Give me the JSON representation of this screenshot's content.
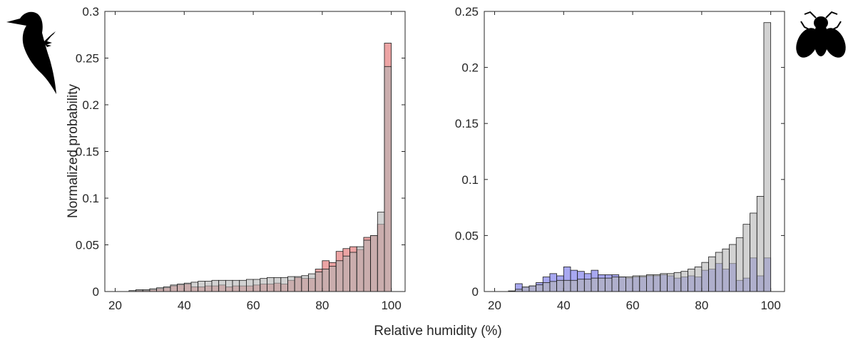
{
  "figure": {
    "xlabel": "Relative humidity (%)",
    "ylabel": "Normalized probability"
  },
  "icons": [
    {
      "name": "woodpecker-icon",
      "fill": "#000000"
    },
    {
      "name": "fly-icon",
      "fill": "#000000"
    }
  ],
  "chart_data": [
    {
      "type": "bar",
      "subtype": "overlaid-histogram",
      "panel": "left",
      "icon": "woodpecker-icon",
      "xlim": [
        17,
        104
      ],
      "ylim": [
        0,
        0.3
      ],
      "xticks": [
        20,
        40,
        60,
        80,
        100
      ],
      "yticks": [
        0,
        0.05,
        0.1,
        0.15,
        0.2,
        0.25,
        0.3
      ],
      "ytick_labels": [
        "0",
        "0.05",
        "0.1",
        "0.15",
        "0.2",
        "0.25",
        "0.3"
      ],
      "bin_width": 2,
      "bin_starts": [
        24,
        26,
        28,
        30,
        32,
        34,
        36,
        38,
        40,
        42,
        44,
        46,
        48,
        50,
        52,
        54,
        56,
        58,
        60,
        62,
        64,
        66,
        68,
        70,
        72,
        74,
        76,
        78,
        80,
        82,
        84,
        86,
        88,
        90,
        92,
        94,
        96,
        98
      ],
      "series": [
        {
          "color": "#dc5a5a",
          "opacity": 0.55,
          "values": [
            0,
            0.001,
            0.001,
            0.002,
            0.003,
            0.004,
            0.006,
            0.007,
            0.008,
            0.005,
            0.005,
            0.006,
            0.006,
            0.007,
            0.005,
            0.006,
            0.006,
            0.006,
            0.007,
            0.008,
            0.008,
            0.009,
            0.008,
            0.012,
            0.015,
            0.014,
            0.014,
            0.024,
            0.033,
            0.031,
            0.043,
            0.046,
            0.048,
            0.045,
            0.058,
            0.06,
            0.072,
            0.266
          ]
        },
        {
          "color": "#b4b4b4",
          "opacity": 0.6,
          "values": [
            0.001,
            0.002,
            0.002,
            0.003,
            0.004,
            0.005,
            0.007,
            0.008,
            0.009,
            0.01,
            0.011,
            0.011,
            0.012,
            0.012,
            0.012,
            0.012,
            0.012,
            0.013,
            0.013,
            0.014,
            0.015,
            0.015,
            0.015,
            0.016,
            0.016,
            0.017,
            0.019,
            0.021,
            0.024,
            0.027,
            0.033,
            0.038,
            0.042,
            0.048,
            0.055,
            0.06,
            0.085,
            0.241
          ]
        }
      ]
    },
    {
      "type": "bar",
      "subtype": "overlaid-histogram",
      "panel": "right",
      "icon": "fly-icon",
      "xlim": [
        17,
        104
      ],
      "ylim": [
        0,
        0.25
      ],
      "xticks": [
        20,
        40,
        60,
        80,
        100
      ],
      "yticks": [
        0,
        0.05,
        0.1,
        0.15,
        0.2,
        0.25
      ],
      "ytick_labels": [
        "0",
        "0.05",
        "0.1",
        "0.15",
        "0.2",
        "0.25"
      ],
      "bin_width": 2,
      "bin_starts": [
        24,
        26,
        28,
        30,
        32,
        34,
        36,
        38,
        40,
        42,
        44,
        46,
        48,
        50,
        52,
        54,
        56,
        58,
        60,
        62,
        64,
        66,
        68,
        70,
        72,
        74,
        76,
        78,
        80,
        82,
        84,
        86,
        88,
        90,
        92,
        94,
        96,
        98
      ],
      "series": [
        {
          "color": "#6060e6",
          "opacity": 0.55,
          "values": [
            0.0005,
            0.007,
            0.004,
            0.005,
            0.008,
            0.013,
            0.016,
            0.014,
            0.022,
            0.019,
            0.018,
            0.016,
            0.019,
            0.015,
            0.015,
            0.015,
            0.013,
            0.012,
            0.013,
            0.013,
            0.014,
            0.014,
            0.015,
            0.014,
            0.012,
            0.013,
            0.014,
            0.013,
            0.019,
            0.02,
            0.025,
            0.02,
            0.025,
            0.01,
            0.012,
            0.03,
            0.014,
            0.03
          ]
        },
        {
          "color": "#b4b4b4",
          "opacity": 0.6,
          "values": [
            0.0005,
            0.002,
            0.004,
            0.005,
            0.006,
            0.008,
            0.009,
            0.01,
            0.01,
            0.01,
            0.011,
            0.011,
            0.012,
            0.012,
            0.012,
            0.013,
            0.013,
            0.013,
            0.014,
            0.014,
            0.015,
            0.015,
            0.016,
            0.016,
            0.017,
            0.018,
            0.02,
            0.022,
            0.026,
            0.031,
            0.035,
            0.038,
            0.042,
            0.048,
            0.06,
            0.07,
            0.085,
            0.24
          ]
        }
      ]
    }
  ]
}
